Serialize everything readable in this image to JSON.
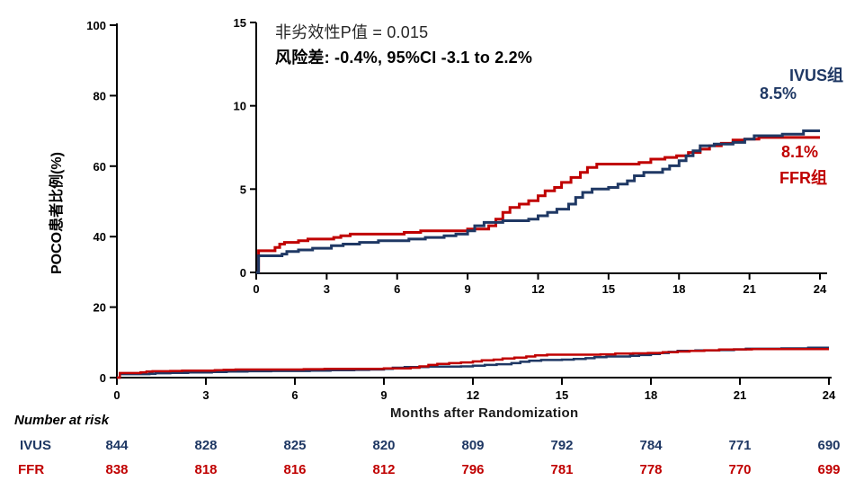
{
  "annotations": {
    "noninferiority_p": "非劣效性P值 = 0.015",
    "risk_difference": "风险差: -0.4%, 95%CI -3.1 to 2.2%"
  },
  "curve_labels": {
    "ivus_group": "IVUS组",
    "ivus_final": "8.5%",
    "ffr_final": "8.1%",
    "ffr_group": "FFR组"
  },
  "axes_titles": {
    "ylabel": "POCO患者比例(%)",
    "xlabel": "Months after Randomization"
  },
  "colors": {
    "ivus": "#1f3864",
    "ffr": "#c00000",
    "axis": "#000000"
  },
  "risk_table": {
    "title": "Number at risk",
    "rows": [
      {
        "label": "IVUS",
        "color": "#1f3864",
        "values": [
          844,
          828,
          825,
          820,
          809,
          792,
          784,
          771,
          690
        ]
      },
      {
        "label": "FFR",
        "color": "#c00000",
        "values": [
          838,
          818,
          816,
          812,
          796,
          781,
          778,
          770,
          699
        ]
      }
    ]
  },
  "chart_data": {
    "type": "line",
    "subtype": "cumulative-incidence-step-curves",
    "title": "",
    "xlabel": "Months after Randomization",
    "ylabel": "POCO患者比例(%)",
    "xlim": [
      0,
      24
    ],
    "xticks": [
      0,
      3,
      6,
      9,
      12,
      15,
      18,
      21,
      24
    ],
    "main_panel": {
      "ylim": [
        0,
        100
      ],
      "yticks": [
        0,
        20,
        40,
        60,
        80,
        100
      ],
      "grid": false
    },
    "inset_panel": {
      "ylim": [
        0,
        15
      ],
      "yticks": [
        0,
        5,
        10,
        15
      ],
      "grid": false
    },
    "annotations": [
      "非劣效性P值 = 0.015",
      "风险差: -0.4%, 95%CI -3.1 to 2.2%"
    ],
    "series": [
      {
        "name": "FFR组",
        "color": "#c00000",
        "final_value_pct": 8.1,
        "points": [
          [
            0.1,
            1.3
          ],
          [
            0.8,
            1.5
          ],
          [
            1.0,
            1.7
          ],
          [
            1.2,
            1.8
          ],
          [
            1.8,
            1.9
          ],
          [
            2.2,
            2.0
          ],
          [
            3.3,
            2.1
          ],
          [
            3.6,
            2.2
          ],
          [
            4.0,
            2.3
          ],
          [
            6.3,
            2.4
          ],
          [
            7.0,
            2.5
          ],
          [
            9.0,
            2.6
          ],
          [
            9.9,
            2.8
          ],
          [
            10.2,
            3.2
          ],
          [
            10.5,
            3.6
          ],
          [
            10.8,
            3.9
          ],
          [
            11.2,
            4.1
          ],
          [
            11.6,
            4.3
          ],
          [
            12.0,
            4.6
          ],
          [
            12.3,
            4.9
          ],
          [
            12.7,
            5.1
          ],
          [
            13.0,
            5.4
          ],
          [
            13.4,
            5.7
          ],
          [
            13.8,
            6.0
          ],
          [
            14.1,
            6.3
          ],
          [
            14.5,
            6.5
          ],
          [
            16.3,
            6.6
          ],
          [
            16.8,
            6.8
          ],
          [
            17.4,
            6.9
          ],
          [
            17.9,
            7.0
          ],
          [
            18.4,
            7.2
          ],
          [
            18.9,
            7.4
          ],
          [
            19.3,
            7.6
          ],
          [
            19.8,
            7.75
          ],
          [
            20.3,
            7.95
          ],
          [
            20.8,
            8.0
          ],
          [
            21.4,
            8.1
          ]
        ]
      },
      {
        "name": "IVUS组",
        "color": "#1f3864",
        "final_value_pct": 8.5,
        "points": [
          [
            0.1,
            1.0
          ],
          [
            1.1,
            1.1
          ],
          [
            1.3,
            1.25
          ],
          [
            1.8,
            1.35
          ],
          [
            2.4,
            1.45
          ],
          [
            3.2,
            1.6
          ],
          [
            3.7,
            1.7
          ],
          [
            4.4,
            1.8
          ],
          [
            5.2,
            1.9
          ],
          [
            6.5,
            2.0
          ],
          [
            7.2,
            2.1
          ],
          [
            8.0,
            2.2
          ],
          [
            8.5,
            2.3
          ],
          [
            9.0,
            2.5
          ],
          [
            9.3,
            2.8
          ],
          [
            9.7,
            3.0
          ],
          [
            10.5,
            3.1
          ],
          [
            11.6,
            3.2
          ],
          [
            12.0,
            3.4
          ],
          [
            12.4,
            3.6
          ],
          [
            12.8,
            3.8
          ],
          [
            13.3,
            4.1
          ],
          [
            13.6,
            4.5
          ],
          [
            13.9,
            4.8
          ],
          [
            14.3,
            5.0
          ],
          [
            15.0,
            5.1
          ],
          [
            15.4,
            5.3
          ],
          [
            15.8,
            5.5
          ],
          [
            16.1,
            5.8
          ],
          [
            16.5,
            6.0
          ],
          [
            17.3,
            6.2
          ],
          [
            17.6,
            6.4
          ],
          [
            18.0,
            6.7
          ],
          [
            18.3,
            7.0
          ],
          [
            18.6,
            7.3
          ],
          [
            18.9,
            7.6
          ],
          [
            19.5,
            7.7
          ],
          [
            20.3,
            7.8
          ],
          [
            20.8,
            8.0
          ],
          [
            21.2,
            8.2
          ],
          [
            22.4,
            8.3
          ],
          [
            23.3,
            8.5
          ]
        ]
      }
    ]
  }
}
